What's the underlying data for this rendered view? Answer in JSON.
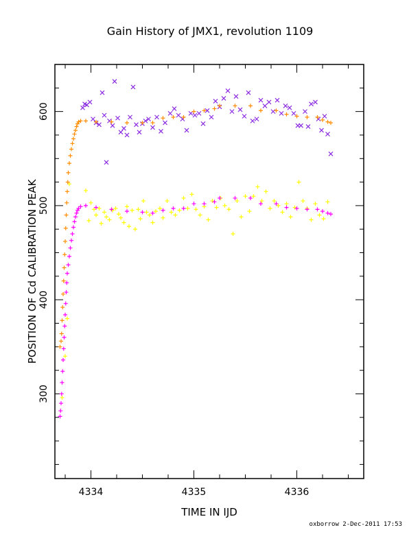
{
  "chart_data": {
    "type": "scatter",
    "title": "Gain History of JMX1, revolution 1109",
    "xlabel": "TIME IN IJD",
    "ylabel": "POSITION OF Cd CALIBRATION PEAK",
    "xlim": [
      4333.65,
      4336.65
    ],
    "ylim": [
      210,
      650
    ],
    "xticks": [
      4334,
      4335,
      4336
    ],
    "yticks": [
      300,
      400,
      500,
      600
    ],
    "grid": false,
    "series": [
      {
        "color": "#8a2be2",
        "marker": "x",
        "points": [
          [
            4333.92,
            604
          ],
          [
            4333.94,
            608
          ],
          [
            4333.96,
            607
          ],
          [
            4333.99,
            610
          ],
          [
            4334.02,
            592
          ],
          [
            4334.05,
            588
          ],
          [
            4334.08,
            586
          ],
          [
            4334.11,
            620
          ],
          [
            4334.13,
            596
          ],
          [
            4334.15,
            546
          ],
          [
            4334.18,
            590
          ],
          [
            4334.21,
            585
          ],
          [
            4334.23,
            632
          ],
          [
            4334.26,
            593
          ],
          [
            4334.29,
            578
          ],
          [
            4334.32,
            582
          ],
          [
            4334.35,
            575
          ],
          [
            4334.38,
            594
          ],
          [
            4334.41,
            626
          ],
          [
            4334.44,
            586
          ],
          [
            4334.47,
            578
          ],
          [
            4334.5,
            587
          ],
          [
            4334.53,
            590
          ],
          [
            4334.56,
            592
          ],
          [
            4334.6,
            583
          ],
          [
            4334.64,
            594
          ],
          [
            4334.68,
            579
          ],
          [
            4334.72,
            588
          ],
          [
            4334.77,
            598
          ],
          [
            4334.81,
            603
          ],
          [
            4334.85,
            596
          ],
          [
            4334.89,
            592
          ],
          [
            4334.93,
            580
          ],
          [
            4334.97,
            598
          ],
          [
            4335.01,
            596
          ],
          [
            4335.05,
            598
          ],
          [
            4335.09,
            587
          ],
          [
            4335.13,
            601
          ],
          [
            4335.17,
            594
          ],
          [
            4335.21,
            611
          ],
          [
            4335.25,
            605
          ],
          [
            4335.29,
            614
          ],
          [
            4335.33,
            622
          ],
          [
            4335.37,
            600
          ],
          [
            4335.41,
            616
          ],
          [
            4335.45,
            602
          ],
          [
            4335.49,
            595
          ],
          [
            4335.53,
            620
          ],
          [
            4335.57,
            590
          ],
          [
            4335.61,
            592
          ],
          [
            4335.65,
            612
          ],
          [
            4335.69,
            606
          ],
          [
            4335.73,
            610
          ],
          [
            4335.77,
            600
          ],
          [
            4335.81,
            612
          ],
          [
            4335.85,
            598
          ],
          [
            4335.89,
            606
          ],
          [
            4335.93,
            604
          ],
          [
            4335.97,
            598
          ],
          [
            4336.01,
            585
          ],
          [
            4336.04,
            585
          ],
          [
            4336.08,
            600
          ],
          [
            4336.11,
            584
          ],
          [
            4336.14,
            608
          ],
          [
            4336.18,
            610
          ],
          [
            4336.21,
            592
          ],
          [
            4336.24,
            580
          ],
          [
            4336.27,
            595
          ],
          [
            4336.3,
            576
          ],
          [
            4336.33,
            555
          ]
        ]
      },
      {
        "color": "#ffff00",
        "marker": "+",
        "points": [
          [
            4333.72,
            296
          ],
          [
            4333.75,
            340
          ],
          [
            4333.77,
            380
          ],
          [
            4333.79,
            523
          ],
          [
            4333.95,
            516
          ],
          [
            4333.98,
            484
          ],
          [
            4334.0,
            503
          ],
          [
            4334.03,
            496
          ],
          [
            4334.05,
            490
          ],
          [
            4334.08,
            497
          ],
          [
            4334.1,
            481
          ],
          [
            4334.13,
            493
          ],
          [
            4334.15,
            488
          ],
          [
            4334.18,
            485
          ],
          [
            4334.21,
            495
          ],
          [
            4334.24,
            497
          ],
          [
            4334.27,
            491
          ],
          [
            4334.29,
            487
          ],
          [
            4334.32,
            482
          ],
          [
            4334.35,
            499
          ],
          [
            4334.37,
            478
          ],
          [
            4334.4,
            495
          ],
          [
            4334.43,
            475
          ],
          [
            4334.46,
            496
          ],
          [
            4334.48,
            486
          ],
          [
            4334.51,
            505
          ],
          [
            4334.54,
            493
          ],
          [
            4334.57,
            490
          ],
          [
            4334.6,
            482
          ],
          [
            4334.63,
            494
          ],
          [
            4334.67,
            497
          ],
          [
            4334.7,
            487
          ],
          [
            4334.74,
            505
          ],
          [
            4334.78,
            493
          ],
          [
            4334.82,
            490
          ],
          [
            4334.86,
            495
          ],
          [
            4334.9,
            508
          ],
          [
            4334.94,
            497
          ],
          [
            4334.98,
            512
          ],
          [
            4335.02,
            496
          ],
          [
            4335.06,
            490
          ],
          [
            4335.1,
            499
          ],
          [
            4335.14,
            485
          ],
          [
            4335.18,
            505
          ],
          [
            4335.22,
            498
          ],
          [
            4335.26,
            508
          ],
          [
            4335.3,
            500
          ],
          [
            4335.34,
            496
          ],
          [
            4335.38,
            470
          ],
          [
            4335.42,
            505
          ],
          [
            4335.46,
            488
          ],
          [
            4335.5,
            510
          ],
          [
            4335.54,
            494
          ],
          [
            4335.58,
            510
          ],
          [
            4335.62,
            520
          ],
          [
            4335.66,
            505
          ],
          [
            4335.7,
            515
          ],
          [
            4335.74,
            497
          ],
          [
            4335.78,
            505
          ],
          [
            4335.82,
            500
          ],
          [
            4335.86,
            493
          ],
          [
            4335.9,
            502
          ],
          [
            4335.94,
            488
          ],
          [
            4335.98,
            498
          ],
          [
            4336.02,
            525
          ],
          [
            4336.06,
            505
          ],
          [
            4336.1,
            497
          ],
          [
            4336.14,
            485
          ],
          [
            4336.18,
            502
          ],
          [
            4336.22,
            490
          ],
          [
            4336.26,
            486
          ],
          [
            4336.3,
            504
          ]
        ]
      },
      {
        "color": "#ff8c00",
        "marker": "+",
        "points": [
          [
            4333.7,
            350
          ],
          [
            4333.71,
            356
          ],
          [
            4333.715,
            364
          ],
          [
            4333.72,
            378
          ],
          [
            4333.725,
            392
          ],
          [
            4333.73,
            406
          ],
          [
            4333.735,
            420
          ],
          [
            4333.74,
            434
          ],
          [
            4333.745,
            448
          ],
          [
            4333.75,
            462
          ],
          [
            4333.755,
            476
          ],
          [
            4333.76,
            490
          ],
          [
            4333.765,
            503
          ],
          [
            4333.77,
            515
          ],
          [
            4333.775,
            525
          ],
          [
            4333.78,
            535
          ],
          [
            4333.79,
            545
          ],
          [
            4333.8,
            553
          ],
          [
            4333.81,
            560
          ],
          [
            4333.82,
            566
          ],
          [
            4333.83,
            571
          ],
          [
            4333.84,
            576
          ],
          [
            4333.85,
            580
          ],
          [
            4333.86,
            584
          ],
          [
            4333.87,
            587
          ],
          [
            4333.88,
            589
          ],
          [
            4333.9,
            590
          ],
          [
            4333.95,
            590
          ],
          [
            4334.05,
            589
          ],
          [
            4334.2,
            589
          ],
          [
            4334.35,
            588
          ],
          [
            4334.5,
            588
          ],
          [
            4334.6,
            588
          ],
          [
            4334.7,
            593
          ],
          [
            4334.8,
            594
          ],
          [
            4334.9,
            594
          ],
          [
            4335.0,
            600
          ],
          [
            4335.1,
            601
          ],
          [
            4335.2,
            603
          ],
          [
            4335.25,
            606
          ],
          [
            4335.4,
            606
          ],
          [
            4335.55,
            606
          ],
          [
            4335.65,
            601
          ],
          [
            4335.8,
            601
          ],
          [
            4335.9,
            597
          ],
          [
            4336.0,
            595
          ],
          [
            4336.1,
            594
          ],
          [
            4336.2,
            594
          ],
          [
            4336.25,
            591
          ],
          [
            4336.3,
            589
          ],
          [
            4336.33,
            588
          ]
        ]
      },
      {
        "color": "#ff00ff",
        "marker": "+",
        "points": [
          [
            4333.7,
            276
          ],
          [
            4333.705,
            282
          ],
          [
            4333.71,
            290
          ],
          [
            4333.715,
            300
          ],
          [
            4333.72,
            312
          ],
          [
            4333.725,
            324
          ],
          [
            4333.73,
            336
          ],
          [
            4333.735,
            348
          ],
          [
            4333.74,
            360
          ],
          [
            4333.745,
            372
          ],
          [
            4333.75,
            384
          ],
          [
            4333.755,
            396
          ],
          [
            4333.76,
            408
          ],
          [
            4333.765,
            418
          ],
          [
            4333.77,
            428
          ],
          [
            4333.78,
            437
          ],
          [
            4333.79,
            446
          ],
          [
            4333.8,
            455
          ],
          [
            4333.81,
            463
          ],
          [
            4333.82,
            470
          ],
          [
            4333.83,
            477
          ],
          [
            4333.84,
            483
          ],
          [
            4333.85,
            488
          ],
          [
            4333.86,
            492
          ],
          [
            4333.87,
            495
          ],
          [
            4333.88,
            497
          ],
          [
            4333.9,
            499
          ],
          [
            4333.95,
            500
          ],
          [
            4334.05,
            498
          ],
          [
            4334.2,
            496
          ],
          [
            4334.35,
            494
          ],
          [
            4334.5,
            493
          ],
          [
            4334.6,
            492
          ],
          [
            4334.7,
            495
          ],
          [
            4334.8,
            497
          ],
          [
            4334.9,
            497
          ],
          [
            4335.0,
            502
          ],
          [
            4335.1,
            502
          ],
          [
            4335.2,
            504
          ],
          [
            4335.25,
            508
          ],
          [
            4335.4,
            508
          ],
          [
            4335.55,
            508
          ],
          [
            4335.65,
            502
          ],
          [
            4335.8,
            502
          ],
          [
            4335.9,
            498
          ],
          [
            4336.0,
            497
          ],
          [
            4336.1,
            496
          ],
          [
            4336.2,
            496
          ],
          [
            4336.25,
            494
          ],
          [
            4336.3,
            492
          ],
          [
            4336.33,
            491
          ]
        ]
      }
    ]
  },
  "footer": "oxborrow  2-Dec-2011 17:53"
}
